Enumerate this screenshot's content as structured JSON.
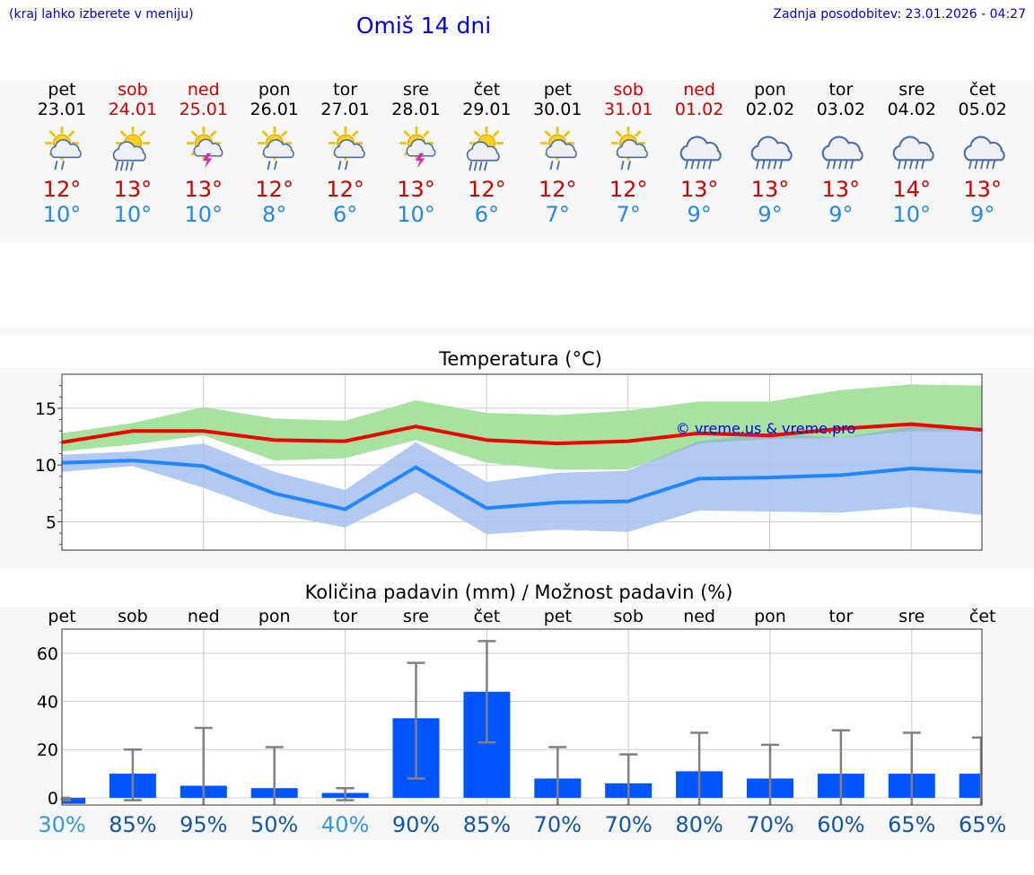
{
  "header": {
    "location_hint": "(kraj lahko izberete v meniju)",
    "title": "Omiš 14 dni",
    "updated": "Zadnja posodobitev: 23.01.2026 - 04:27"
  },
  "days": [
    {
      "name": "pet",
      "date": "23.01",
      "weekend": false,
      "icon": "sun-cloud-rain-icon",
      "max": "12°",
      "min": "10°"
    },
    {
      "name": "sob",
      "date": "24.01",
      "weekend": true,
      "icon": "sun-cloud-heavy-rain-icon",
      "max": "13°",
      "min": "10°"
    },
    {
      "name": "ned",
      "date": "25.01",
      "weekend": true,
      "icon": "sun-cloud-thunder-icon",
      "max": "13°",
      "min": "10°"
    },
    {
      "name": "pon",
      "date": "26.01",
      "weekend": false,
      "icon": "sun-cloud-rain-icon",
      "max": "12°",
      "min": "8°"
    },
    {
      "name": "tor",
      "date": "27.01",
      "weekend": false,
      "icon": "sun-cloud-rain-icon",
      "max": "12°",
      "min": "6°"
    },
    {
      "name": "sre",
      "date": "28.01",
      "weekend": false,
      "icon": "sun-cloud-thunder-icon",
      "max": "13°",
      "min": "10°"
    },
    {
      "name": "čet",
      "date": "29.01",
      "weekend": false,
      "icon": "sun-cloud-heavy-rain-icon",
      "max": "12°",
      "min": "6°"
    },
    {
      "name": "pet",
      "date": "30.01",
      "weekend": false,
      "icon": "sun-cloud-rain-icon",
      "max": "12°",
      "min": "7°"
    },
    {
      "name": "sob",
      "date": "31.01",
      "weekend": true,
      "icon": "sun-cloud-rain-icon",
      "max": "12°",
      "min": "7°"
    },
    {
      "name": "ned",
      "date": "01.02",
      "weekend": true,
      "icon": "cloud-rain-icon",
      "max": "13°",
      "min": "9°"
    },
    {
      "name": "pon",
      "date": "02.02",
      "weekend": false,
      "icon": "cloud-rain-icon",
      "max": "13°",
      "min": "9°"
    },
    {
      "name": "tor",
      "date": "03.02",
      "weekend": false,
      "icon": "cloud-rain-icon",
      "max": "13°",
      "min": "9°"
    },
    {
      "name": "sre",
      "date": "04.02",
      "weekend": false,
      "icon": "cloud-rain-icon",
      "max": "14°",
      "min": "10°"
    },
    {
      "name": "čet",
      "date": "05.02",
      "weekend": false,
      "icon": "cloud-rain-icon",
      "max": "13°",
      "min": "9°"
    }
  ],
  "colors": {
    "max_line": "#ee0000",
    "max_band": "#a8e2a0",
    "min_line": "#2288ff",
    "min_band": "#a4bff0",
    "overlap_band": "#7fc0a8",
    "bar": "#0055ff",
    "whisker": "#808080",
    "prob_low": "#3399dd",
    "prob_high": "#1155aa"
  },
  "chart_data": [
    {
      "type": "line",
      "title": "Temperatura (°C)",
      "watermark": "© vreme.us & vreme.pro",
      "ylim": [
        2.5,
        18
      ],
      "yticks": [
        5,
        10,
        15
      ],
      "x": [
        0,
        1,
        2,
        3,
        4,
        5,
        6,
        7,
        8,
        9,
        10,
        11,
        12,
        13
      ],
      "series": [
        {
          "name": "max",
          "values": [
            12.0,
            13.0,
            13.0,
            12.2,
            12.1,
            13.4,
            12.2,
            11.9,
            12.1,
            12.8,
            12.6,
            13.2,
            13.6,
            13.1
          ],
          "band_low": [
            11.2,
            11.8,
            12.6,
            10.4,
            10.6,
            12.2,
            10.2,
            9.6,
            9.6,
            11.9,
            12.3,
            12.4,
            13.0,
            13.0
          ],
          "band_high": [
            12.8,
            13.7,
            15.1,
            14.1,
            13.9,
            15.7,
            14.6,
            14.4,
            14.8,
            15.6,
            15.6,
            16.6,
            17.1,
            17.0
          ]
        },
        {
          "name": "min",
          "values": [
            10.2,
            10.4,
            9.9,
            7.5,
            6.1,
            9.8,
            6.2,
            6.7,
            6.8,
            8.8,
            8.9,
            9.1,
            9.7,
            9.4
          ],
          "band_low": [
            9.4,
            9.9,
            8.0,
            5.7,
            4.5,
            7.6,
            3.9,
            4.3,
            4.1,
            6.0,
            5.9,
            5.8,
            6.3,
            5.6
          ],
          "band_high": [
            10.9,
            11.2,
            11.9,
            9.4,
            7.8,
            12.0,
            8.5,
            9.3,
            9.5,
            12.1,
            12.8,
            12.4,
            13.4,
            13.2
          ]
        }
      ]
    },
    {
      "type": "bar",
      "title": "Količina padavin (mm) / Možnost padavin (%)",
      "categories": [
        "pet",
        "sob",
        "ned",
        "pon",
        "tor",
        "sre",
        "čet",
        "pet",
        "sob",
        "ned",
        "pon",
        "tor",
        "sre",
        "čet"
      ],
      "ylim": [
        -3,
        70
      ],
      "yticks": [
        0,
        20,
        40,
        60
      ],
      "values": [
        -2.5,
        10,
        5,
        4,
        2,
        33,
        44,
        8,
        6,
        11,
        8,
        10,
        10,
        10
      ],
      "err_low": [
        -1,
        -1,
        -3,
        -3,
        -1,
        8,
        23,
        -3,
        -3,
        -3,
        -3,
        -3,
        -3,
        -3
      ],
      "err_high": [
        0,
        20,
        29,
        21,
        4,
        56,
        65,
        21,
        18,
        27,
        22,
        28,
        27,
        25
      ],
      "probability": [
        "30%",
        "85%",
        "95%",
        "50%",
        "40%",
        "90%",
        "85%",
        "70%",
        "70%",
        "80%",
        "70%",
        "60%",
        "65%",
        "65%"
      ]
    }
  ]
}
